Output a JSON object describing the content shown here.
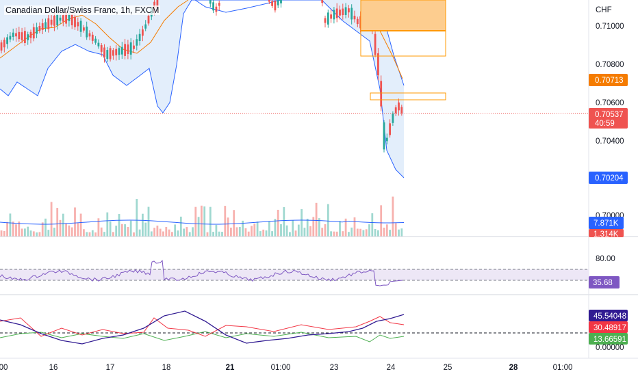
{
  "symbol": {
    "title": "Canadian Dollar/Swiss Franc, 1h, FXCM"
  },
  "colors": {
    "up": "#26a69a",
    "down": "#ef5350",
    "bollinger": "#2962ff",
    "bollinger_fill": "#e3eefb",
    "ma": "#f57c00",
    "box": "#ff9800",
    "box_fill": "#fdcd8f",
    "rsi": "#7e57c2",
    "rsi_band": "#ede7f6",
    "osc_main": "#311b92",
    "osc_red": "#f23645",
    "osc_green": "#4caf50",
    "vol_ma": "#2962ff"
  },
  "price_axis": {
    "unit": "CHF",
    "ticks": [
      "0.71000",
      "0.70800",
      "0.70600",
      "0.70400",
      "0.70000"
    ],
    "tags": {
      "ma": "0.70713",
      "last": "0.70537",
      "countdown": "40:59",
      "lower_band": "0.70204"
    }
  },
  "volume_axis": {
    "tags": {
      "vol_ma": "7.871K",
      "volume": "1.314K"
    }
  },
  "rsi_axis": {
    "ticks": [
      "80.00"
    ],
    "tags": {
      "rsi": "35.68"
    }
  },
  "osc_axis": {
    "ticks": [
      "0.00000"
    ],
    "tags": {
      "line1": "45.54048",
      "line2": "30.48917",
      "line3": "13.66591"
    }
  },
  "time_axis": {
    "labels": [
      "00",
      "16",
      "17",
      "18",
      "21",
      "01:00",
      "23",
      "24",
      "25",
      "28",
      "01:00"
    ]
  },
  "chart_data": {
    "type": "candlestick",
    "title": "Canadian Dollar/Swiss Franc, 1h, FXCM",
    "y_unit": "CHF",
    "price_range": [
      0.7,
      0.7115
    ],
    "last_price": 0.70537,
    "ma_value": 0.70713,
    "lower_band_value": 0.70204,
    "countdown": "40:59",
    "volume": {
      "ma": "7.871K",
      "last": "1.314K"
    },
    "rsi": {
      "value": 35.68,
      "upper_band": 80.0
    },
    "oscillator": {
      "values": [
        45.54048,
        30.48917,
        13.66591
      ],
      "zero": 0.0
    },
    "x_labels": [
      "00",
      "16",
      "17",
      "18",
      "21",
      "01:00",
      "23",
      "24",
      "25",
      "28",
      "01:00"
    ]
  }
}
